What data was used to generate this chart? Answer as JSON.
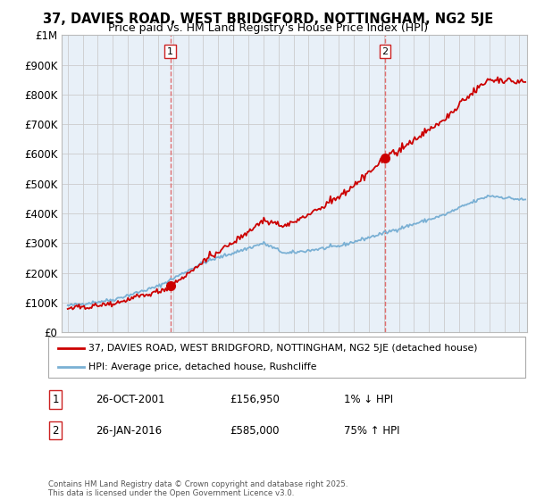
{
  "title_line1": "37, DAVIES ROAD, WEST BRIDGFORD, NOTTINGHAM, NG2 5JE",
  "title_line2": "Price paid vs. HM Land Registry's House Price Index (HPI)",
  "ylabel_ticks": [
    "£0",
    "£100K",
    "£200K",
    "£300K",
    "£400K",
    "£500K",
    "£600K",
    "£700K",
    "£800K",
    "£900K",
    "£1M"
  ],
  "ytick_values": [
    0,
    100000,
    200000,
    300000,
    400000,
    500000,
    600000,
    700000,
    800000,
    900000,
    1000000
  ],
  "xlim_start": 1994.6,
  "xlim_end": 2025.5,
  "ylim_min": 0,
  "ylim_max": 1000000,
  "sale1_date": 2001.82,
  "sale1_price": 156950,
  "sale1_label": "1",
  "sale2_date": 2016.07,
  "sale2_price": 585000,
  "sale2_label": "2",
  "property_color": "#cc0000",
  "hpi_color": "#7ab0d4",
  "grid_color": "#cccccc",
  "plot_bg_color": "#e8f0f8",
  "background_color": "#ffffff",
  "legend_label1": "37, DAVIES ROAD, WEST BRIDGFORD, NOTTINGHAM, NG2 5JE (detached house)",
  "legend_label2": "HPI: Average price, detached house, Rushcliffe",
  "annotation1_date": "26-OCT-2001",
  "annotation1_price": "£156,950",
  "annotation1_hpi": "1% ↓ HPI",
  "annotation2_date": "26-JAN-2016",
  "annotation2_price": "£585,000",
  "annotation2_hpi": "75% ↑ HPI",
  "footer": "Contains HM Land Registry data © Crown copyright and database right 2025.\nThis data is licensed under the Open Government Licence v3.0."
}
